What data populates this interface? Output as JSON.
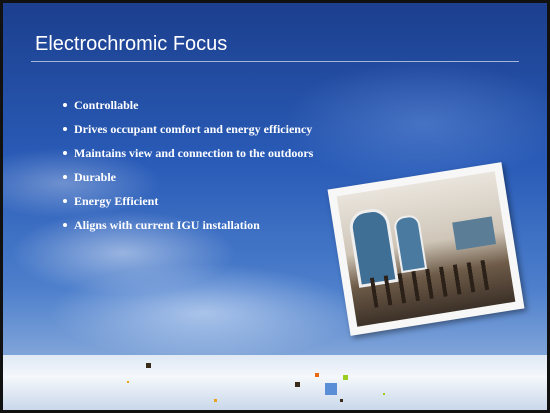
{
  "slide": {
    "title": "Electrochromic Focus",
    "bullets": [
      "Controllable",
      "Drives occupant comfort and energy efficiency",
      "Maintains view and connection to the outdoors",
      "Durable",
      "Energy Efficient",
      "Aligns with current IGU installation"
    ]
  }
}
